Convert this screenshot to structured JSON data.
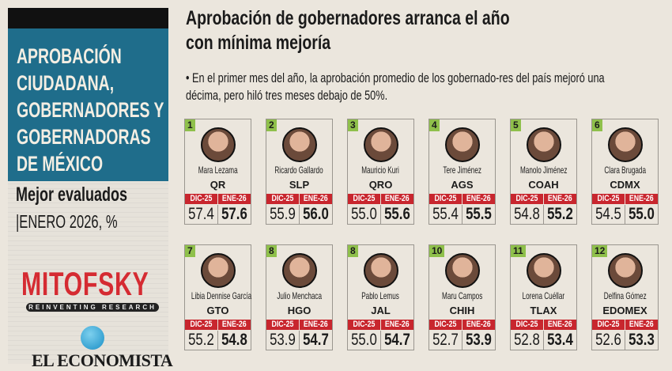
{
  "sidebar": {
    "title_lines": [
      "APROBACIÓN",
      "CIUDADANA,",
      "GOBERNADORES Y",
      "GOBERNADORAS",
      "DE MÉXICO"
    ],
    "subtitle": "Mejor evaluados",
    "period": "|ENERO 2026, %",
    "source_logo": "MITOFSKY",
    "source_tagline": "REINVENTING RESEARCH",
    "publisher": "EL ECONOMISTA"
  },
  "header": {
    "headline": "Aprobación de gobernadores arranca el año con mínima mejoría",
    "summary": "• En el primer mes del año, la aprobación promedio de los gobernado-res del país mejoró una décima, pero hiló tres meses debajo de 50%."
  },
  "colors": {
    "accent_blue": "#1f6d8b",
    "header_red": "#c8262e",
    "rank_green": "#8fc04b"
  },
  "columns": {
    "prev": "DIC-25",
    "curr": "ENE-26"
  },
  "governors": [
    {
      "rank": "1",
      "name": "Mara Lezama",
      "state": "QR",
      "prev": "57.4",
      "curr": "57.6"
    },
    {
      "rank": "2",
      "name": "Ricardo Gallardo",
      "state": "SLP",
      "prev": "55.9",
      "curr": "56.0"
    },
    {
      "rank": "3",
      "name": "Mauricio Kuri",
      "state": "QRO",
      "prev": "55.0",
      "curr": "55.6"
    },
    {
      "rank": "4",
      "name": "Tere Jiménez",
      "state": "AGS",
      "prev": "55.4",
      "curr": "55.5"
    },
    {
      "rank": "5",
      "name": "Manolo Jiménez",
      "state": "COAH",
      "prev": "54.8",
      "curr": "55.2"
    },
    {
      "rank": "6",
      "name": "Clara Brugada",
      "state": "CDMX",
      "prev": "54.5",
      "curr": "55.0"
    },
    {
      "rank": "7",
      "name": "Libia Dennise García",
      "state": "GTO",
      "prev": "55.2",
      "curr": "54.8"
    },
    {
      "rank": "8",
      "name": "Julio Menchaca",
      "state": "HGO",
      "prev": "53.9",
      "curr": "54.7"
    },
    {
      "rank": "8",
      "name": "Pablo Lemus",
      "state": "JAL",
      "prev": "55.0",
      "curr": "54.7"
    },
    {
      "rank": "10",
      "name": "Maru Campos",
      "state": "CHIH",
      "prev": "52.7",
      "curr": "53.9"
    },
    {
      "rank": "11",
      "name": "Lorena Cuéllar",
      "state": "TLAX",
      "prev": "52.8",
      "curr": "53.4"
    },
    {
      "rank": "12",
      "name": "Delfina Gómez",
      "state": "EDOMEX",
      "prev": "52.6",
      "curr": "53.3"
    }
  ]
}
